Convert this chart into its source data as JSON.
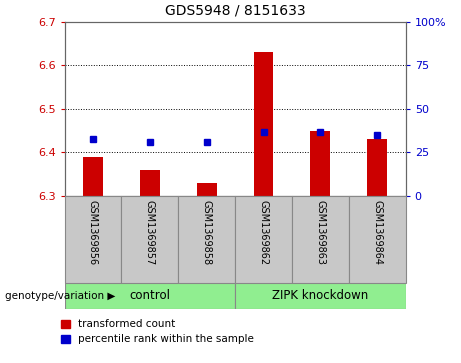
{
  "title": "GDS5948 / 8151633",
  "samples": [
    "GSM1369856",
    "GSM1369857",
    "GSM1369858",
    "GSM1369862",
    "GSM1369863",
    "GSM1369864"
  ],
  "bar_values": [
    6.39,
    6.36,
    6.33,
    6.63,
    6.45,
    6.43
  ],
  "percentile_values": [
    33,
    31,
    31,
    37,
    37,
    35
  ],
  "ylim_left": [
    6.3,
    6.7
  ],
  "ylim_right": [
    0,
    100
  ],
  "yticks_left": [
    6.3,
    6.4,
    6.5,
    6.6,
    6.7
  ],
  "yticks_right": [
    0,
    25,
    50,
    75,
    100
  ],
  "group1_label": "control",
  "group1_indices": [
    0,
    1,
    2
  ],
  "group2_label": "ZIPK knockdown",
  "group2_indices": [
    3,
    4,
    5
  ],
  "group_color": "#90EE90",
  "bar_color": "#cc0000",
  "dot_color": "#0000cc",
  "bar_width": 0.35,
  "bar_bottom": 6.3,
  "sample_bg_color": "#c8c8c8",
  "plot_bg": "#ffffff",
  "grid_color": "#000000",
  "label_fontsize": 8,
  "title_fontsize": 10,
  "tick_label_color_left": "#cc0000",
  "tick_label_color_right": "#0000cc",
  "genotype_label": "genotype/variation",
  "legend_entries": [
    "transformed count",
    "percentile rank within the sample"
  ]
}
